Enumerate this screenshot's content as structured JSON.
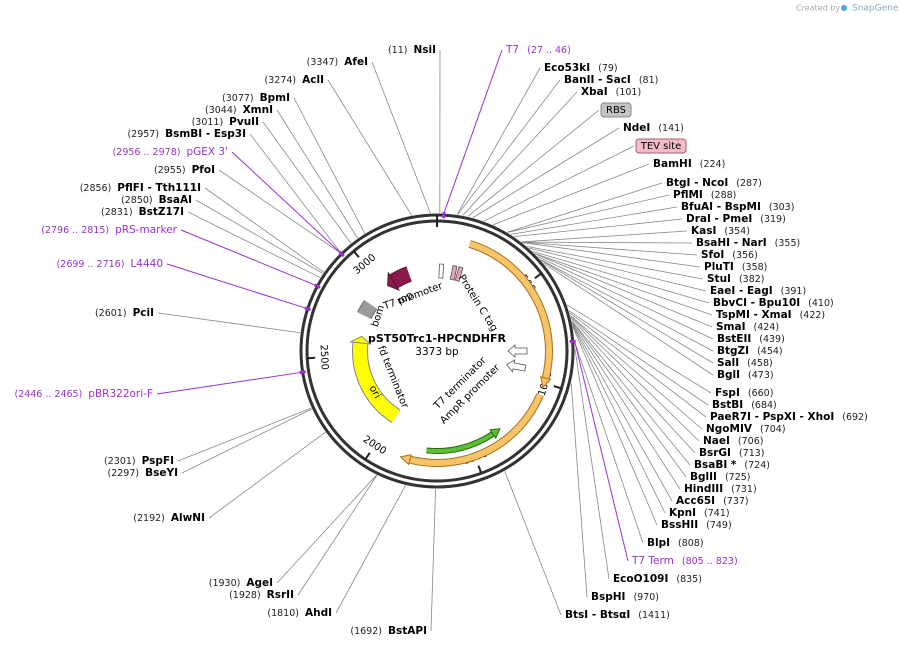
{
  "credit": {
    "prefix": "Created by",
    "brand": "SnapGene"
  },
  "plasmid": {
    "name": "pST50Trc1-HPCNDHFR",
    "size": "3373 bp"
  },
  "ring_ticks": [
    500,
    1000,
    1500,
    2000,
    2500,
    3000
  ],
  "sites_left": [
    {
      "pos": "(11)",
      "name": "NsiI"
    },
    {
      "pos": "(3347)",
      "name": "AfeI"
    },
    {
      "pos": "(3274)",
      "name": "AclI"
    },
    {
      "pos": "(3077)",
      "name": "BpmI"
    },
    {
      "pos": "(3044)",
      "name": "XmnI"
    },
    {
      "pos": "(3011)",
      "name": "PvuII"
    },
    {
      "pos": "(2957)",
      "name": "BsmBI - Esp3I"
    },
    {
      "pos": "(2955)",
      "name": "PfoI"
    },
    {
      "pos": "(2856)",
      "name": "PflFI - Tth111I"
    },
    {
      "pos": "(2850)",
      "name": "BsaAI"
    },
    {
      "pos": "(2831)",
      "name": "BstZ17I"
    },
    {
      "pos": "(2601)",
      "name": "PciI"
    },
    {
      "pos": "(2301)",
      "name": "PspFI"
    },
    {
      "pos": "(2297)",
      "name": "BseYI"
    },
    {
      "pos": "(2192)",
      "name": "AlwNI"
    },
    {
      "pos": "(1930)",
      "name": "AgeI"
    },
    {
      "pos": "(1928)",
      "name": "RsrII"
    },
    {
      "pos": "(1810)",
      "name": "AhdI"
    },
    {
      "pos": "(1692)",
      "name": "BstAPI"
    }
  ],
  "sites_right": [
    {
      "name": "Eco53kI",
      "pos": "(79)"
    },
    {
      "name": "BanII - SacI",
      "pos": "(81)"
    },
    {
      "name": "XbaI",
      "pos": "(101)"
    },
    {
      "name": "NdeI",
      "pos": "(141)"
    },
    {
      "name": "BamHI",
      "pos": "(224)"
    },
    {
      "name": "BtgI - NcoI",
      "pos": "(287)"
    },
    {
      "name": "PflMI",
      "pos": "(288)"
    },
    {
      "name": "BfuAI - BspMI",
      "pos": "(303)"
    },
    {
      "name": "DraI - PmeI",
      "pos": "(319)"
    },
    {
      "name": "KasI",
      "pos": "(354)"
    },
    {
      "name": "BsaHI - NarI",
      "pos": "(355)"
    },
    {
      "name": "SfoI",
      "pos": "(356)"
    },
    {
      "name": "PluTI",
      "pos": "(358)"
    },
    {
      "name": "StuI",
      "pos": "(382)"
    },
    {
      "name": "EaeI - EagI",
      "pos": "(391)"
    },
    {
      "name": "BbvCI - Bpu10I",
      "pos": "(410)"
    },
    {
      "name": "TspMI - XmaI",
      "pos": "(422)"
    },
    {
      "name": "SmaI",
      "pos": "(424)"
    },
    {
      "name": "BstEII",
      "pos": "(439)"
    },
    {
      "name": "BtgZI",
      "pos": "(454)"
    },
    {
      "name": "SalI",
      "pos": "(458)"
    },
    {
      "name": "BglI",
      "pos": "(473)"
    },
    {
      "name": "FspI",
      "pos": "(660)"
    },
    {
      "name": "BstBI",
      "pos": "(684)"
    },
    {
      "name": "PaeR7I - PspXI - XhoI",
      "pos": "(692)"
    },
    {
      "name": "NgoMIV",
      "pos": "(704)"
    },
    {
      "name": "NaeI",
      "pos": "(706)"
    },
    {
      "name": "BsrGI",
      "pos": "(713)"
    },
    {
      "name": "BsaBI *",
      "pos": "(724)"
    },
    {
      "name": "BglII",
      "pos": "(725)"
    },
    {
      "name": "HindIII",
      "pos": "(731)"
    },
    {
      "name": "Acc65I",
      "pos": "(737)"
    },
    {
      "name": "KpnI",
      "pos": "(741)"
    },
    {
      "name": "BssHII",
      "pos": "(749)"
    },
    {
      "name": "BlpI",
      "pos": "(808)"
    },
    {
      "name": "EcoO109I",
      "pos": "(835)"
    },
    {
      "name": "BspHI",
      "pos": "(970)"
    },
    {
      "name": "BtsI - BtsαI",
      "pos": "(1411)"
    }
  ],
  "primers_left": [
    {
      "range": "(2956 .. 2978)",
      "name": "pGEX 3'"
    },
    {
      "range": "(2796 .. 2815)",
      "name": "pRS-marker"
    },
    {
      "range": "(2699 .. 2716)",
      "name": "L4440"
    },
    {
      "range": "(2446 .. 2465)",
      "name": "pBR322ori-F"
    }
  ],
  "primers_right": [
    {
      "name": "T7",
      "range": "(27 .. 46)"
    },
    {
      "name": "T7 Term",
      "range": "(805 .. 823)"
    }
  ],
  "boxed_features": [
    {
      "name": "RBS"
    },
    {
      "name": "TEV site"
    }
  ],
  "features": [
    "T7 promoter",
    "Protein C tag",
    "rop",
    "bom",
    "fd terminator",
    "ori",
    "T7 terminator",
    "AmpR promoter"
  ]
}
